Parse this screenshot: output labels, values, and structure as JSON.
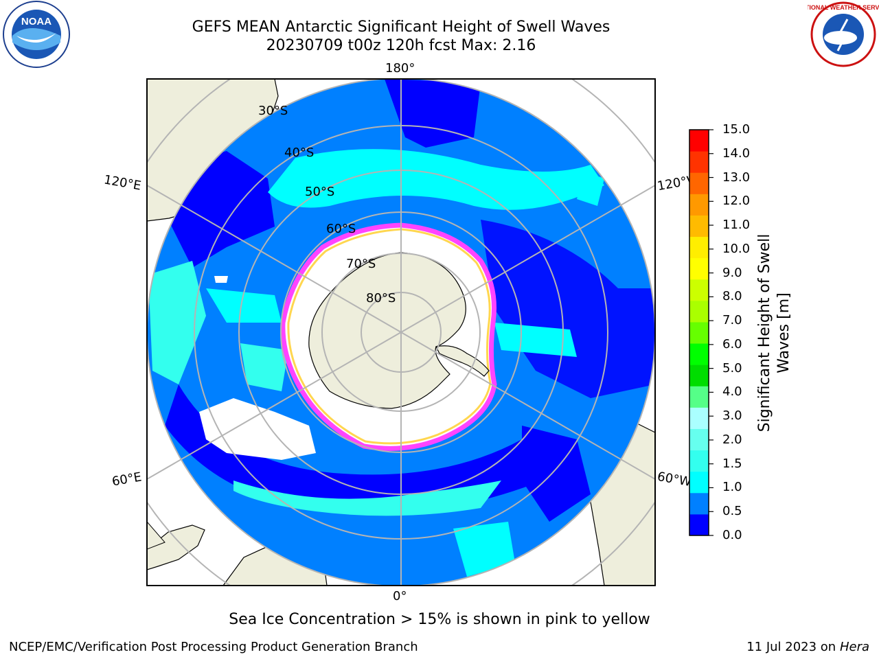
{
  "title": {
    "line1": "GEFS MEAN Antarctic Significant Height of Swell Waves",
    "line2": "20230709 t00z 120h fcst   Max: 2.16"
  },
  "map": {
    "projection": "south-polar-stereographic",
    "longitude_labels": {
      "top": "180°",
      "bottom": "0°",
      "upper_left": "120°E",
      "upper_right": "120°W",
      "lower_left": "60°E",
      "lower_right": "60°W"
    },
    "latitude_labels": [
      "30°S",
      "40°S",
      "50°S",
      "60°S",
      "70°S",
      "80°S"
    ],
    "colors": {
      "land": "#eeeedc",
      "coast": "#000000",
      "grid": "#b4b4b4",
      "sea_ice": "#ffffff",
      "ice_edge_low": "#ff44ff",
      "ice_edge_high": "#ffd23c"
    }
  },
  "colorbar": {
    "label": "Significant Height of Swell Waves [m]",
    "tick_labels": [
      "15.0",
      "14.0",
      "13.0",
      "12.0",
      "11.0",
      "10.0",
      "9.0",
      "8.0",
      "7.0",
      "6.0",
      "5.0",
      "4.0",
      "3.0",
      "2.0",
      "1.5",
      "1.0",
      "0.5",
      "0.0"
    ],
    "colors_bottom_to_top": [
      "#0000ff",
      "#0080ff",
      "#00ffff",
      "#33ffee",
      "#66ffee",
      "#aaffff",
      "#55ff88",
      "#00dd00",
      "#00ff00",
      "#66ff00",
      "#aaff00",
      "#ccff00",
      "#ffff00",
      "#ffee00",
      "#ffbb00",
      "#ff9900",
      "#ff6600",
      "#ff3300",
      "#ff0000"
    ]
  },
  "footer": {
    "note": "Sea Ice Concentration > 15% is shown in pink to yellow",
    "credit": "NCEP/EMC/Verification Post Processing Product Generation Branch",
    "date": "11 Jul 2023 on",
    "host": "Hera"
  },
  "logos": {
    "left": "NOAA",
    "right": "NATIONAL WEATHER SERVICE"
  }
}
